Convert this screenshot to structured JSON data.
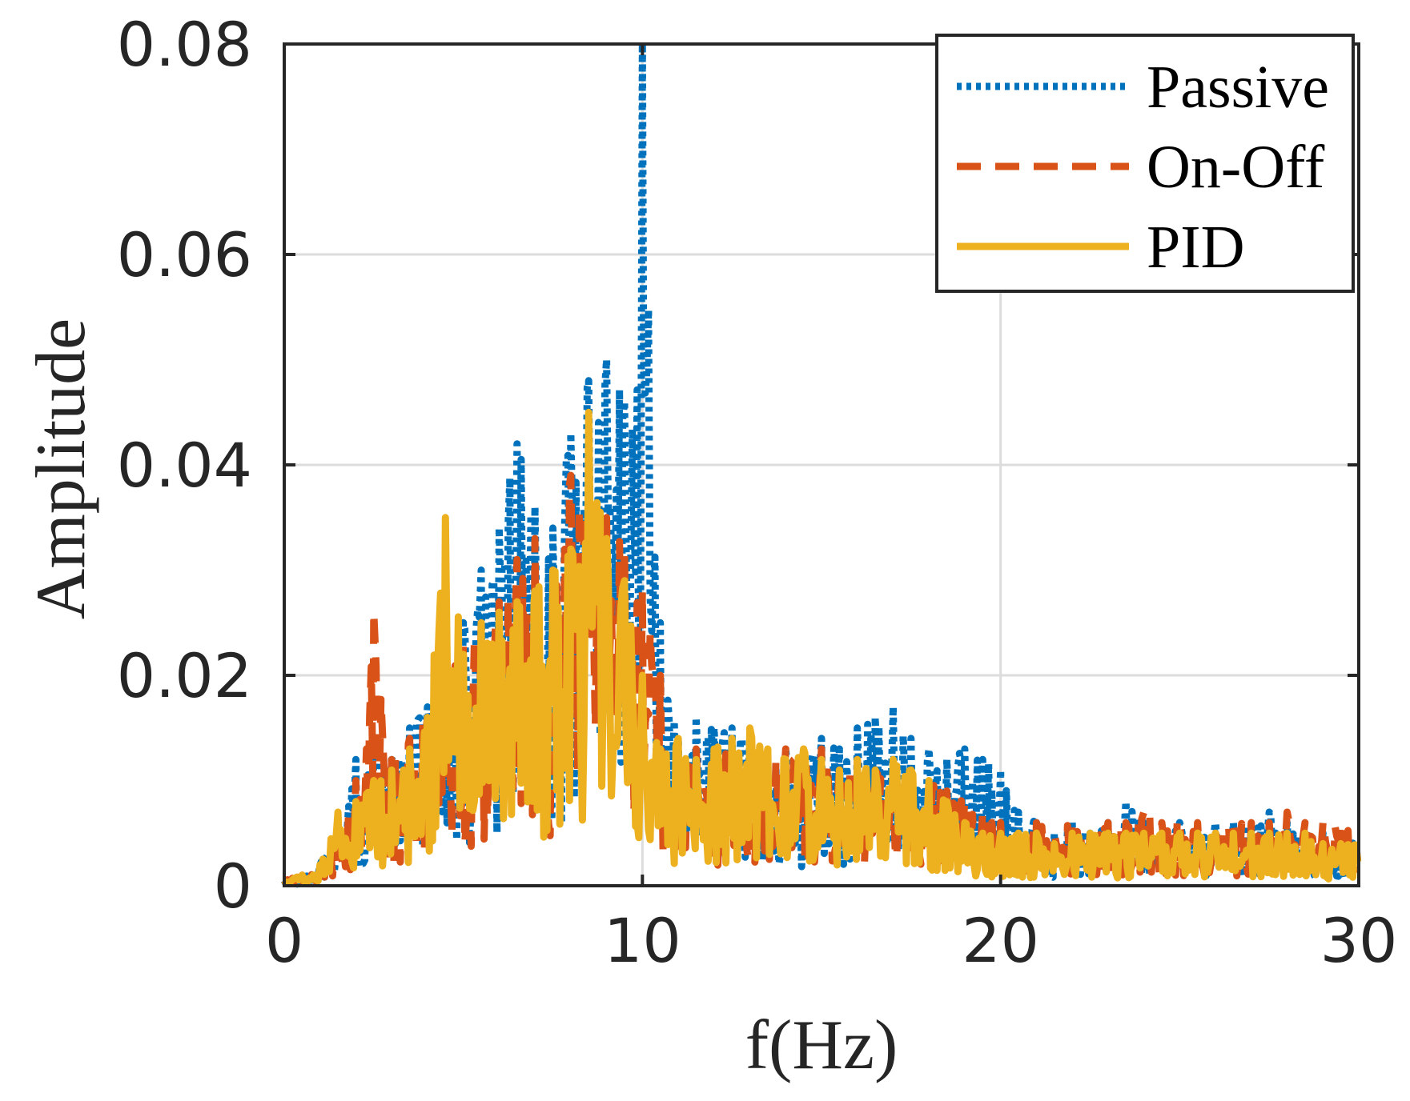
{
  "chart_data": {
    "type": "line",
    "title": "",
    "xlabel": "f(Hz)",
    "ylabel": "Amplitude",
    "xlim": [
      0,
      30
    ],
    "ylim": [
      0,
      0.08
    ],
    "xticks": [
      0,
      10,
      20,
      30
    ],
    "xtick_labels": [
      "0",
      "10",
      "20",
      "30"
    ],
    "yticks": [
      0,
      0.02,
      0.04,
      0.06,
      0.08
    ],
    "ytick_labels": [
      "0",
      "0.02",
      "0.04",
      "0.06",
      "0.08"
    ],
    "grid": true,
    "legend_position": "top-right",
    "series": [
      {
        "name": "Passive",
        "style": "dotted",
        "color": "#0072BD",
        "x": [
          0,
          0.5,
          1,
          1.5,
          2,
          2.5,
          3,
          3.5,
          4,
          4.5,
          5,
          5.5,
          6,
          6.5,
          7,
          7.5,
          8,
          8.5,
          9,
          9.5,
          10,
          10.5,
          11,
          11.5,
          12,
          12.5,
          13,
          13.5,
          14,
          14.5,
          15,
          15.5,
          16,
          16.5,
          17,
          17.5,
          18,
          18.5,
          19,
          19.5,
          20,
          20.5,
          21,
          21.5,
          22,
          22.5,
          23,
          23.5,
          24,
          24.5,
          25,
          25.5,
          26,
          26.5,
          27,
          27.5,
          28,
          28.5,
          29,
          29.5,
          30
        ],
        "values": [
          0.0005,
          0.001,
          0.002,
          0.006,
          0.012,
          0.014,
          0.012,
          0.015,
          0.017,
          0.02,
          0.025,
          0.03,
          0.034,
          0.042,
          0.036,
          0.034,
          0.043,
          0.048,
          0.05,
          0.046,
          0.08,
          0.025,
          0.014,
          0.016,
          0.015,
          0.015,
          0.014,
          0.012,
          0.013,
          0.012,
          0.014,
          0.013,
          0.015,
          0.016,
          0.017,
          0.014,
          0.013,
          0.012,
          0.013,
          0.012,
          0.011,
          0.007,
          0.006,
          0.005,
          0.006,
          0.005,
          0.006,
          0.008,
          0.006,
          0.005,
          0.006,
          0.005,
          0.006,
          0.006,
          0.006,
          0.007,
          0.006,
          0.005,
          0.005,
          0.005,
          0.004
        ]
      },
      {
        "name": "On-Off",
        "style": "dashed",
        "color": "#D95319",
        "x": [
          0,
          0.5,
          1,
          1.5,
          2,
          2.5,
          3,
          3.5,
          4,
          4.5,
          5,
          5.5,
          6,
          6.5,
          7,
          7.5,
          8,
          8.5,
          9,
          9.5,
          10,
          10.5,
          11,
          11.5,
          12,
          12.5,
          13,
          13.5,
          14,
          14.5,
          15,
          15.5,
          16,
          16.5,
          17,
          17.5,
          18,
          18.5,
          19,
          19.5,
          20,
          20.5,
          21,
          21.5,
          22,
          22.5,
          23,
          23.5,
          24,
          24.5,
          25,
          25.5,
          26,
          26.5,
          27,
          27.5,
          28,
          28.5,
          29,
          29.5,
          30
        ],
        "values": [
          0.0005,
          0.001,
          0.002,
          0.005,
          0.01,
          0.026,
          0.012,
          0.014,
          0.016,
          0.021,
          0.023,
          0.025,
          0.027,
          0.031,
          0.033,
          0.03,
          0.039,
          0.036,
          0.035,
          0.032,
          0.028,
          0.02,
          0.012,
          0.013,
          0.012,
          0.013,
          0.012,
          0.011,
          0.013,
          0.012,
          0.013,
          0.011,
          0.012,
          0.011,
          0.01,
          0.011,
          0.01,
          0.009,
          0.008,
          0.007,
          0.006,
          0.005,
          0.006,
          0.005,
          0.006,
          0.005,
          0.006,
          0.006,
          0.007,
          0.006,
          0.006,
          0.006,
          0.005,
          0.006,
          0.006,
          0.006,
          0.007,
          0.006,
          0.006,
          0.006,
          0.005
        ]
      },
      {
        "name": "PID",
        "style": "solid",
        "color": "#EDB120",
        "x": [
          0,
          0.5,
          1,
          1.5,
          2,
          2.5,
          3,
          3.5,
          4,
          4.5,
          5,
          5.5,
          6,
          6.5,
          7,
          7.5,
          8,
          8.5,
          9,
          9.5,
          10,
          10.5,
          11,
          11.5,
          12,
          12.5,
          13,
          13.5,
          14,
          14.5,
          15,
          15.5,
          16,
          16.5,
          17,
          17.5,
          18,
          18.5,
          19,
          19.5,
          20,
          20.5,
          21,
          21.5,
          22,
          22.5,
          23,
          23.5,
          24,
          24.5,
          25,
          25.5,
          26,
          26.5,
          27,
          27.5,
          28,
          28.5,
          29,
          29.5,
          30
        ],
        "values": [
          0.0005,
          0.001,
          0.002,
          0.007,
          0.008,
          0.01,
          0.011,
          0.013,
          0.016,
          0.035,
          0.022,
          0.025,
          0.026,
          0.027,
          0.028,
          0.03,
          0.032,
          0.045,
          0.033,
          0.029,
          0.02,
          0.013,
          0.014,
          0.012,
          0.013,
          0.014,
          0.015,
          0.013,
          0.012,
          0.013,
          0.012,
          0.011,
          0.012,
          0.011,
          0.012,
          0.011,
          0.01,
          0.008,
          0.006,
          0.005,
          0.005,
          0.005,
          0.005,
          0.004,
          0.005,
          0.005,
          0.005,
          0.005,
          0.005,
          0.005,
          0.005,
          0.005,
          0.005,
          0.005,
          0.005,
          0.005,
          0.005,
          0.005,
          0.004,
          0.004,
          0.004
        ]
      }
    ]
  }
}
